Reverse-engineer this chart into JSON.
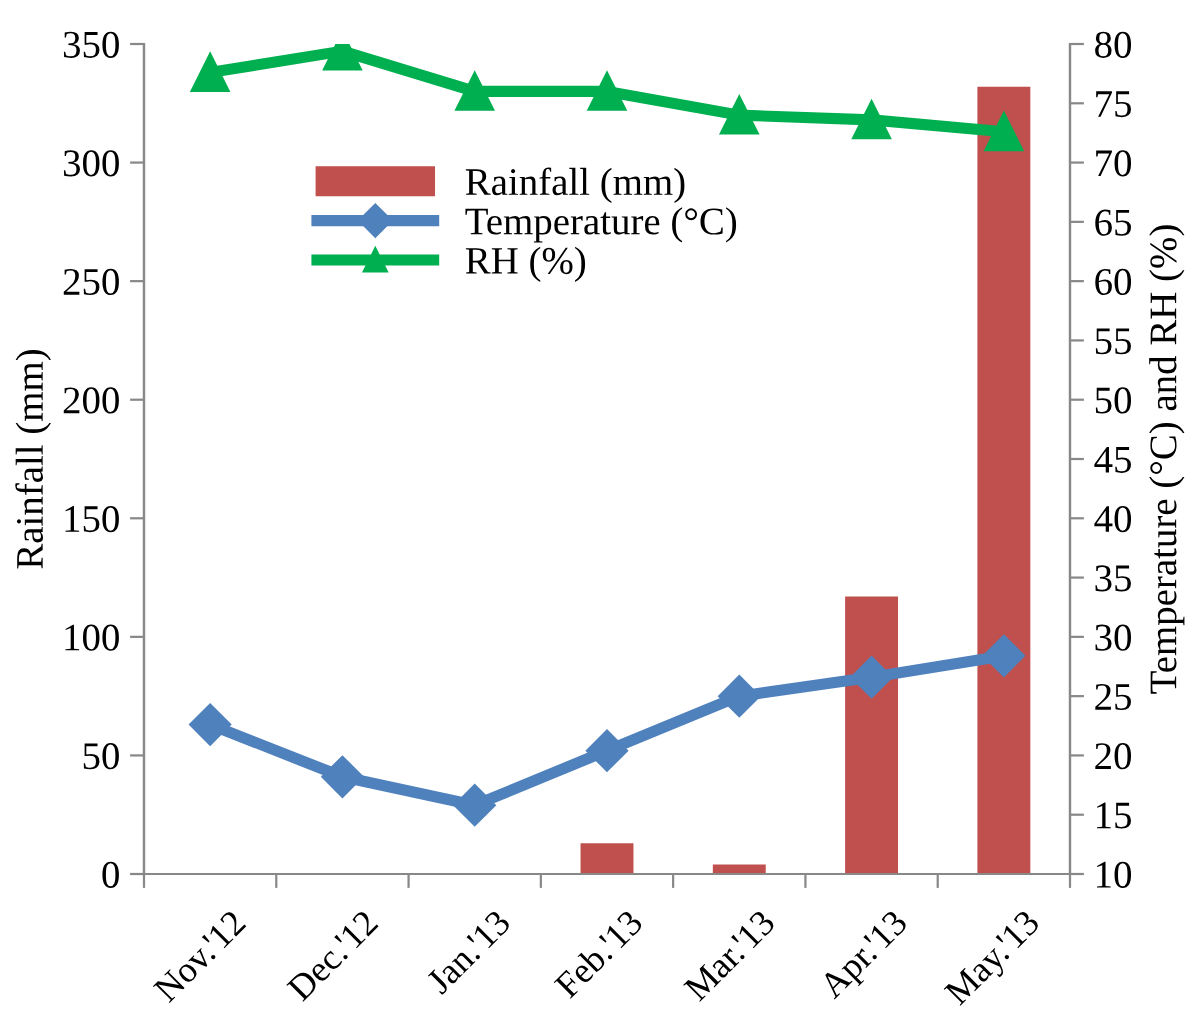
{
  "chart_data": {
    "type": "bar",
    "categories": [
      "Nov.'12",
      "Dec.'12",
      "Jan.'13",
      "Feb.'13",
      "Mar.'13",
      "Apr.'13",
      "May.'13"
    ],
    "ylabel": "Rainfall (mm)",
    "y2label": "Temperature (°C) and RH (%)",
    "series": [
      {
        "name": "Rainfall (mm)",
        "color": "#c0504d",
        "values": [
          0,
          0,
          0,
          13,
          4,
          117,
          332
        ]
      },
      {
        "name": "Temperature (°C)",
        "type": "line",
        "axis": "y2",
        "marker": "diamond",
        "color": "#4f81bd",
        "values": [
          22.6,
          18.2,
          15.8,
          20.4,
          25.0,
          26.6,
          28.4
        ]
      },
      {
        "name": "RH (%)",
        "type": "line",
        "axis": "y2",
        "marker": "triangle",
        "color": "#00b050",
        "values": [
          77.6,
          79.4,
          76.0,
          76.0,
          74.0,
          73.6,
          72.6
        ]
      }
    ],
    "ylim": [
      0,
      350
    ],
    "yticks": [
      0,
      50,
      100,
      150,
      200,
      250,
      300,
      350
    ],
    "y2lim": [
      10,
      80
    ],
    "y2ticks": [
      10,
      15,
      20,
      25,
      30,
      35,
      40,
      45,
      50,
      55,
      60,
      65,
      70,
      75,
      80
    ],
    "grid": false,
    "legend": "top left"
  }
}
